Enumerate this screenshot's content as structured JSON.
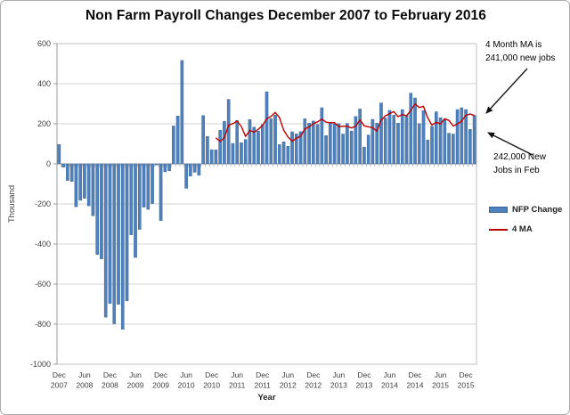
{
  "chart_data": {
    "type": "bar",
    "title": "Non Farm Payroll Changes December 2007 to February 2016",
    "xlabel": "Year",
    "ylabel": "Thousand",
    "ylim": [
      -1000,
      600
    ],
    "ytick_step": 200,
    "grid": "horizontal",
    "x_range": {
      "start": "Dec 2007",
      "end": "Feb 2016",
      "interval": "monthly",
      "n_points": 99
    },
    "series": [
      {
        "name": "NFP Change",
        "type": "bar",
        "color": "#4f81bd",
        "values": [
          97,
          -17,
          -83,
          -88,
          -214,
          -182,
          -172,
          -210,
          -259,
          -452,
          -474,
          -765,
          -697,
          -798,
          -701,
          -826,
          -684,
          -354,
          -467,
          -327,
          -216,
          -227,
          -198,
          -6,
          -283,
          -40,
          -35,
          189,
          239,
          516,
          -122,
          -61,
          -42,
          -57,
          241,
          137,
          71,
          70,
          168,
          212,
          322,
          102,
          217,
          106,
          122,
          221,
          183,
          164,
          196,
          360,
          226,
          243,
          96,
          110,
          88,
          160,
          150,
          161,
          225,
          203,
          214,
          197,
          280,
          141,
          203,
          199,
          201,
          149,
          202,
          164,
          237,
          274,
          84,
          144,
          222,
          203,
          304,
          229,
          267,
          243,
          203,
          271,
          243,
          353,
          329,
          201,
          266,
          119,
          187,
          260,
          231,
          223,
          153,
          149,
          271,
          280,
          271,
          172,
          242
        ]
      },
      {
        "name": "4 MA",
        "type": "line",
        "color": "#c00000",
        "description": "4-month moving average of NFP Change",
        "window": 4,
        "start_index": 37,
        "end_value": 241
      }
    ],
    "x_tick_labels": [
      {
        "month": "Dec",
        "year": "2007",
        "index": 0
      },
      {
        "month": "Jun",
        "year": "2008",
        "index": 6
      },
      {
        "month": "Dec",
        "year": "2008",
        "index": 12
      },
      {
        "month": "Jun",
        "year": "2009",
        "index": 18
      },
      {
        "month": "Dec",
        "year": "2009",
        "index": 24
      },
      {
        "month": "Jun",
        "year": "2010",
        "index": 30
      },
      {
        "month": "Dec",
        "year": "2010",
        "index": 36
      },
      {
        "month": "Jun",
        "year": "2011",
        "index": 42
      },
      {
        "month": "Dec",
        "year": "2011",
        "index": 48
      },
      {
        "month": "Jun",
        "year": "2012",
        "index": 54
      },
      {
        "month": "Dec",
        "year": "2012",
        "index": 60
      },
      {
        "month": "Jun",
        "year": "2013",
        "index": 66
      },
      {
        "month": "Dec",
        "year": "2013",
        "index": 72
      },
      {
        "month": "Jun",
        "year": "2014",
        "index": 78
      },
      {
        "month": "Dec",
        "year": "2014",
        "index": 84
      },
      {
        "month": "Jun",
        "year": "2015",
        "index": 90
      },
      {
        "month": "Dec",
        "year": "2015",
        "index": 96
      }
    ],
    "legend": {
      "position": "right",
      "items": [
        {
          "label": "NFP Change",
          "swatch": "bar",
          "color": "#4f81bd"
        },
        {
          "label": "4 MA",
          "swatch": "line",
          "color": "#c00000"
        }
      ]
    },
    "annotations": [
      {
        "lines": [
          "4 Month MA is",
          "241,000 new jobs"
        ],
        "points_to": "end of 4 MA line"
      },
      {
        "lines": [
          "242,000 New",
          "Jobs in Feb"
        ],
        "points_to": "Feb 2016 bar"
      }
    ]
  }
}
